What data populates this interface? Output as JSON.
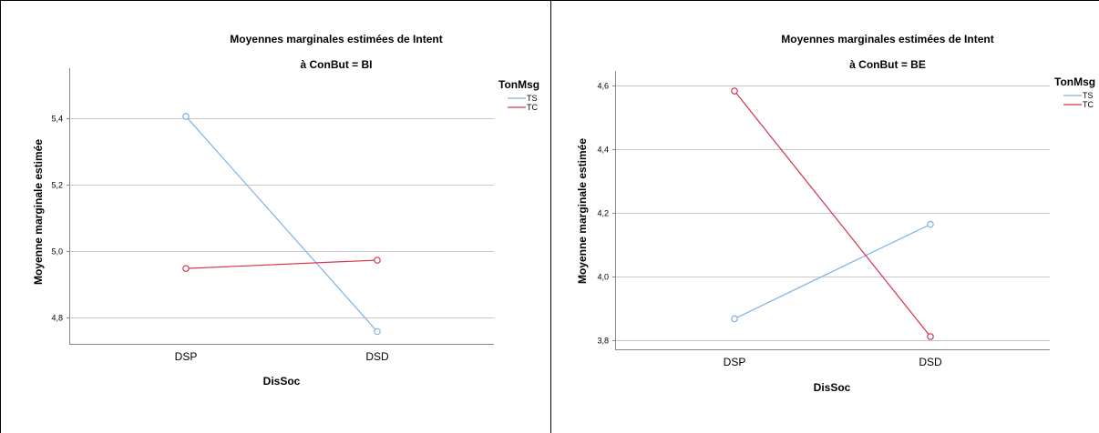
{
  "chart_data": [
    {
      "type": "line",
      "title": "Moyennes marginales estimées de Intent",
      "subtitle": "à ConBut = BI",
      "xlabel": "DisSoc",
      "ylabel": "Moyenne marginale estimée",
      "categories": [
        "DSP",
        "DSD"
      ],
      "yticks": [
        "4,8",
        "5,0",
        "5,2",
        "5,4"
      ],
      "ylim": [
        4.72,
        5.55
      ],
      "legend_title": "TonMsg",
      "legend_position": "right",
      "grid": true,
      "series": [
        {
          "name": "TS",
          "color": "#7fb2e6",
          "values": [
            5.405,
            4.757
          ]
        },
        {
          "name": "TC",
          "color": "#d6344f",
          "values": [
            4.947,
            4.972
          ]
        }
      ]
    },
    {
      "type": "line",
      "title": "Moyennes marginales estimées de Intent",
      "subtitle": "à ConBut = BE",
      "xlabel": "DisSoc",
      "ylabel": "Moyenne marginale estimée",
      "categories": [
        "DSP",
        "DSD"
      ],
      "yticks": [
        "3,8",
        "4,0",
        "4,2",
        "4,4",
        "4,6"
      ],
      "ylim": [
        3.77,
        4.645
      ],
      "legend_title": "TonMsg",
      "legend_position": "right",
      "grid": true,
      "series": [
        {
          "name": "TS",
          "color": "#7fb2e6",
          "values": [
            3.866,
            4.163
          ]
        },
        {
          "name": "TC",
          "color": "#d6344f",
          "values": [
            4.582,
            3.81
          ]
        }
      ]
    }
  ]
}
